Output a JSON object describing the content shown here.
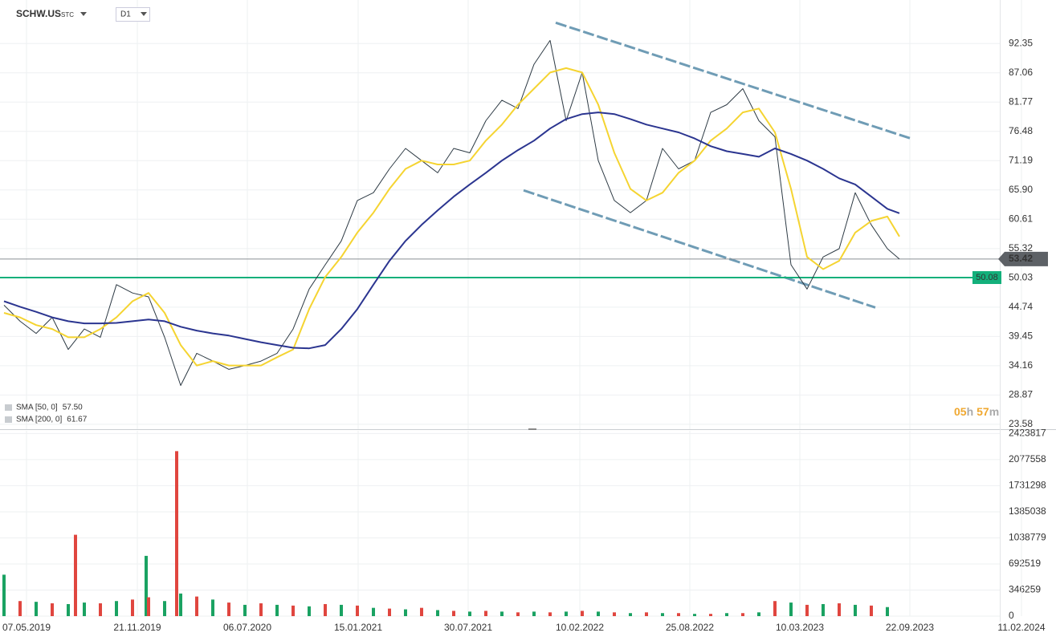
{
  "header": {
    "symbol": "SCHW.US",
    "market": "STC",
    "interval": "D1"
  },
  "timer": {
    "hours": "05",
    "hours_unit": "h",
    "minutes": "57",
    "minutes_unit": "m"
  },
  "chart_data": [
    {
      "type": "line",
      "x": [
        0,
        1,
        2,
        3,
        4,
        5,
        6,
        7,
        8,
        9,
        10,
        11,
        12,
        13,
        14,
        15,
        16,
        17,
        18,
        19,
        20,
        21,
        22,
        23,
        24,
        25,
        26,
        27,
        28,
        29,
        30,
        31,
        32,
        33,
        34,
        35,
        36,
        37,
        38,
        39,
        40,
        41,
        42,
        43,
        44,
        45,
        46,
        47,
        48,
        49,
        50,
        51,
        52,
        53,
        54,
        55,
        55.75
      ],
      "xlim": [
        -0.25,
        62
      ],
      "ylim": [
        22.7,
        100.2
      ],
      "yticks": [
        23.58,
        28.87,
        34.16,
        39.45,
        44.74,
        50.03,
        55.32,
        60.61,
        {
          "value": 65.9,
          "label": "65.90"
        },
        71.19,
        76.48,
        81.77,
        87.06,
        92.35
      ],
      "grid": true,
      "series": [
        {
          "color": "#2d3a44",
          "width": 1,
          "values": [
            45.1,
            42.2,
            40.0,
            42.9,
            37.1,
            40.8,
            39.3,
            48.8,
            47.3,
            46.6,
            39.3,
            30.6,
            36.4,
            35.0,
            33.5,
            34.2,
            35.0,
            36.4,
            40.8,
            48.0,
            52.4,
            56.7,
            64.0,
            65.4,
            69.7,
            73.4,
            71.2,
            69.0,
            73.4,
            72.6,
            78.4,
            82.1,
            80.6,
            88.6,
            92.9,
            78.4,
            87.1,
            71.2,
            64.0,
            61.8,
            64.0,
            73.4,
            69.7,
            71.2,
            79.9,
            81.3,
            84.2,
            78.4,
            75.5,
            52.4,
            48.0,
            53.8,
            55.3,
            65.4,
            59.6,
            55.3,
            53.42
          ]
        },
        {
          "name": "SMA [50, 0]",
          "legend_value": "57.50",
          "color": "#f5d431",
          "width": 2,
          "values": [
            43.7,
            42.9,
            41.5,
            40.8,
            39.3,
            39.3,
            40.8,
            42.9,
            45.8,
            47.3,
            43.7,
            37.9,
            34.2,
            35.0,
            34.2,
            34.2,
            34.2,
            35.7,
            37.1,
            44.4,
            50.2,
            53.8,
            58.2,
            61.8,
            66.1,
            69.7,
            71.2,
            70.5,
            70.5,
            71.2,
            74.8,
            77.7,
            81.3,
            84.2,
            87.1,
            87.9,
            87.1,
            81.3,
            72.6,
            66.1,
            64.0,
            65.4,
            69.0,
            71.2,
            74.8,
            77.0,
            79.9,
            80.6,
            76.3,
            66.1,
            53.8,
            51.6,
            53.1,
            58.2,
            60.3,
            61.1,
            57.5
          ]
        },
        {
          "name": "SMA [200, 0]",
          "legend_value": "61.67",
          "color": "#2b3590",
          "width": 2,
          "values": [
            45.8,
            44.8,
            43.9,
            42.9,
            42.2,
            41.8,
            41.8,
            41.9,
            42.2,
            42.5,
            42.2,
            41.2,
            40.5,
            40.0,
            39.6,
            39.0,
            38.4,
            37.9,
            37.4,
            37.3,
            37.9,
            40.8,
            44.4,
            48.8,
            53.1,
            56.7,
            59.6,
            62.2,
            64.7,
            66.9,
            69.0,
            71.2,
            73.1,
            74.8,
            77.0,
            78.7,
            79.6,
            79.9,
            79.6,
            78.7,
            77.7,
            77.0,
            76.3,
            75.2,
            73.8,
            72.9,
            72.4,
            71.9,
            73.4,
            72.4,
            71.2,
            69.7,
            68.0,
            66.9,
            64.7,
            62.5,
            61.7
          ]
        }
      ],
      "hlines": [
        {
          "value": 53.42,
          "color": "#8a8f94",
          "label_bg": "#5d6166"
        },
        {
          "value": 50.08,
          "color": "#13b07b",
          "label_bg": "#13b07b"
        }
      ],
      "trendlines": [
        {
          "x": [
            34.35,
            56.4
          ],
          "y": [
            96.1,
            75.25
          ],
          "color": "#6f9cb5"
        },
        {
          "x": [
            32.35,
            54.25
          ],
          "y": [
            65.83,
            44.67
          ],
          "color": "#6f9cb5"
        }
      ]
    },
    {
      "type": "bar",
      "x": [
        0,
        1,
        2,
        3,
        4,
        4.45,
        5,
        6,
        7,
        8,
        8.85,
        9,
        10,
        10.75,
        11,
        12,
        13,
        14,
        15,
        16,
        17,
        18,
        19,
        20,
        21,
        22,
        23,
        24,
        25,
        26,
        27,
        28,
        29,
        30,
        31,
        32,
        33,
        34,
        35,
        36,
        37,
        38,
        39,
        40,
        41,
        42,
        43,
        44,
        45,
        46,
        47,
        48,
        49,
        50,
        51,
        52,
        53,
        54,
        55
      ],
      "values": [
        550000,
        200000,
        190000,
        170000,
        160000,
        1080000,
        180000,
        170000,
        200000,
        220000,
        800000,
        250000,
        200000,
        2190000,
        300000,
        260000,
        220000,
        180000,
        150000,
        170000,
        150000,
        140000,
        130000,
        160000,
        150000,
        140000,
        110000,
        100000,
        90000,
        110000,
        80000,
        70000,
        60000,
        70000,
        60000,
        50000,
        60000,
        50000,
        60000,
        70000,
        60000,
        50000,
        40000,
        50000,
        40000,
        40000,
        30000,
        30000,
        40000,
        40000,
        50000,
        200000,
        180000,
        150000,
        160000,
        170000,
        150000,
        140000,
        120000
      ],
      "bar_colors": [
        "#1aa262",
        "#e0463f"
      ],
      "xlim": [
        -0.25,
        62
      ],
      "ylim": [
        0,
        2460000
      ],
      "yticks": [
        0,
        346259,
        692519,
        1038779,
        1385038,
        1731298,
        2077558,
        2423817
      ],
      "xticks": [
        {
          "value": 1.4,
          "label": "07.05.2019"
        },
        {
          "value": 8.3,
          "label": "21.11.2019"
        },
        {
          "value": 15.15,
          "label": "06.07.2020"
        },
        {
          "value": 22.05,
          "label": "15.01.2021"
        },
        {
          "value": 28.9,
          "label": "30.07.2021"
        },
        {
          "value": 35.85,
          "label": "10.02.2022"
        },
        {
          "value": 42.7,
          "label": "25.08.2022"
        },
        {
          "value": 49.55,
          "label": "10.03.2023"
        },
        {
          "value": 56.4,
          "label": "22.09.2023"
        },
        {
          "value": 63.35,
          "label": "11.02.2024"
        }
      ],
      "grid": true
    }
  ]
}
